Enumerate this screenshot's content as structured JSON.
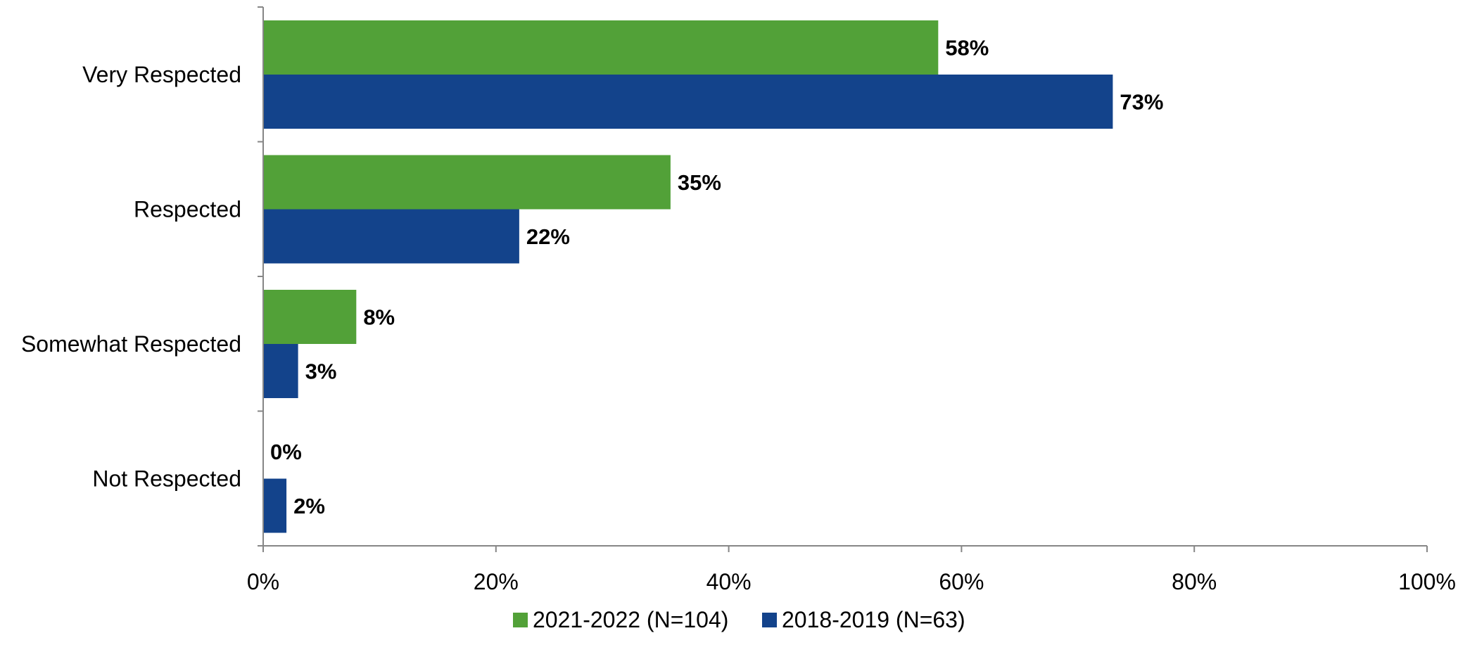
{
  "chart_data": {
    "type": "bar",
    "orientation": "horizontal",
    "categories": [
      "Very Respected",
      "Respected",
      "Somewhat Respected",
      "Not Respected"
    ],
    "series": [
      {
        "name": "2021-2022 (N=104)",
        "values": [
          58,
          35,
          8,
          0
        ],
        "color": "#52a138",
        "labels": [
          "58%",
          "35%",
          "8%",
          "0%"
        ]
      },
      {
        "name": "2018-2019 (N=63)",
        "values": [
          73,
          22,
          3,
          2
        ],
        "color": "#13438b",
        "labels": [
          "73%",
          "22%",
          "3%",
          "2%"
        ]
      }
    ],
    "xlim": [
      0,
      100
    ],
    "xticks": [
      0,
      20,
      40,
      60,
      80,
      100
    ],
    "xtick_labels": [
      "0%",
      "20%",
      "40%",
      "60%",
      "80%",
      "100%"
    ],
    "legend_position": "bottom",
    "grid": false,
    "axis_color": "#868686"
  }
}
